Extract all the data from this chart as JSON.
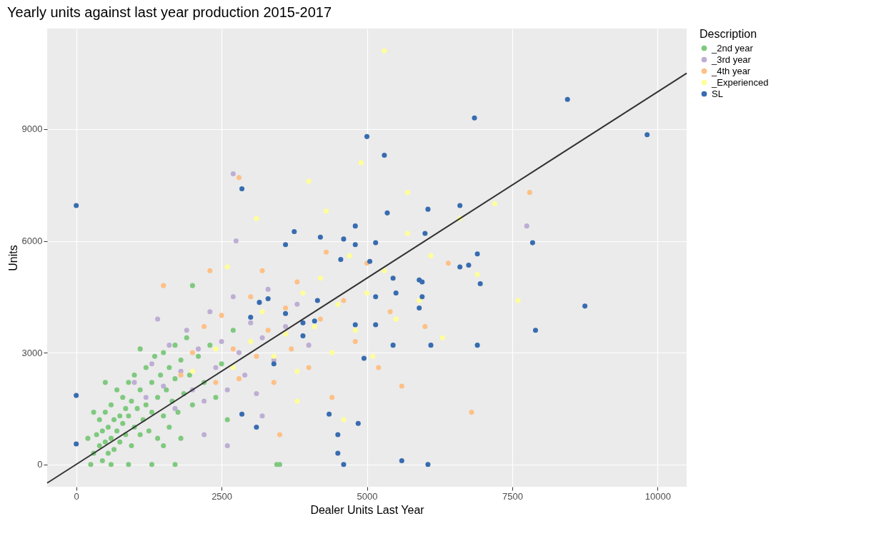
{
  "chart_data": {
    "type": "scatter",
    "title": "Yearly units against last year production 2015-2017",
    "xlabel": "Dealer Units Last Year",
    "ylabel": "Units",
    "legend_title": "Description",
    "xlim": [
      -500,
      10500
    ],
    "ylim": [
      -600,
      11700
    ],
    "xticks": [
      0,
      2500,
      5000,
      7500,
      10000
    ],
    "yticks": [
      0,
      3000,
      6000,
      9000
    ],
    "grid": true,
    "legend": "right",
    "marker": "circle",
    "series": [
      {
        "name": "_2nd year",
        "color": "#7fc97f",
        "x": [
          300,
          350,
          400,
          400,
          450,
          450,
          500,
          500,
          550,
          550,
          600,
          600,
          650,
          650,
          700,
          700,
          750,
          750,
          800,
          800,
          850,
          850,
          900,
          900,
          950,
          950,
          1000,
          1000,
          1050,
          1100,
          1100,
          1150,
          1200,
          1200,
          1250,
          1300,
          1300,
          1350,
          1400,
          1400,
          1450,
          1500,
          1500,
          1550,
          1600,
          1600,
          1650,
          1700,
          1700,
          1750,
          1800,
          1850,
          1900,
          1950,
          2000,
          2000,
          2100,
          2200,
          2300,
          2400,
          2500,
          250,
          600,
          900,
          1300,
          1700,
          3450,
          3500,
          500,
          300,
          200,
          1100,
          2700,
          2600,
          1500,
          1800
        ],
        "values": [
          300,
          800,
          500,
          1200,
          100,
          900,
          600,
          1400,
          300,
          1000,
          700,
          1600,
          1200,
          400,
          900,
          2000,
          1300,
          600,
          1100,
          1800,
          800,
          1500,
          1300,
          2200,
          500,
          1700,
          1000,
          2400,
          1500,
          800,
          2000,
          1200,
          2600,
          1600,
          900,
          2200,
          1400,
          2900,
          1800,
          700,
          2400,
          1300,
          3000,
          2000,
          2600,
          1000,
          1700,
          3200,
          2300,
          1400,
          2800,
          1900,
          3400,
          2400,
          1600,
          4800,
          2900,
          2200,
          3200,
          1800,
          2700,
          0,
          0,
          0,
          0,
          0,
          0,
          0,
          2200,
          1400,
          700,
          3100,
          3600,
          1200,
          500,
          700
        ]
      },
      {
        "name": "_3rd year",
        "color": "#beaed4",
        "x": [
          1000,
          1200,
          1300,
          1500,
          1600,
          1700,
          1800,
          1900,
          2000,
          2100,
          2200,
          2300,
          2400,
          2500,
          2600,
          2700,
          2800,
          2900,
          3000,
          3100,
          3200,
          3300,
          3400,
          3600,
          3800,
          4000,
          2750,
          2700,
          7750,
          1400,
          2200,
          2600,
          3200
        ],
        "values": [
          2200,
          1800,
          2700,
          2100,
          3200,
          1500,
          2500,
          3600,
          2000,
          3100,
          1700,
          4100,
          2600,
          3300,
          2000,
          4500,
          3000,
          2400,
          3800,
          1900,
          3400,
          4700,
          2800,
          3700,
          4300,
          3200,
          6000,
          7800,
          6400,
          3900,
          800,
          500,
          1300
        ]
      },
      {
        "name": "_4th year",
        "color": "#fdc086",
        "x": [
          1500,
          1800,
          2000,
          2200,
          2400,
          2500,
          2700,
          2800,
          3000,
          3100,
          3200,
          3300,
          3400,
          3600,
          3700,
          3800,
          4000,
          4200,
          4400,
          4600,
          4800,
          5000,
          5200,
          5400,
          5600,
          6000,
          6400,
          6800,
          7800,
          2800,
          4300,
          3500,
          2300
        ],
        "values": [
          4800,
          2400,
          3000,
          3700,
          2200,
          4000,
          3100,
          2300,
          4500,
          2900,
          5200,
          3600,
          2200,
          4200,
          3100,
          4900,
          2600,
          3900,
          1800,
          4400,
          3300,
          5400,
          2600,
          4100,
          2100,
          3700,
          5400,
          1400,
          7300,
          7700,
          5700,
          800,
          5200
        ]
      },
      {
        "name": "_Experienced",
        "color": "#ffff99",
        "x": [
          2000,
          2400,
          2700,
          3000,
          3200,
          3400,
          3600,
          3800,
          3900,
          4100,
          4200,
          4400,
          4500,
          4700,
          4800,
          5000,
          5100,
          5300,
          5500,
          5700,
          5900,
          6100,
          6300,
          6600,
          6900,
          7200,
          7600,
          4000,
          4900,
          5300,
          3800,
          4600,
          5700,
          3100,
          2600,
          4300
        ],
        "values": [
          2500,
          3100,
          2600,
          3300,
          4100,
          2900,
          3500,
          2500,
          4600,
          3700,
          5000,
          3000,
          4300,
          5600,
          3600,
          4600,
          2900,
          5200,
          3900,
          6200,
          4400,
          5600,
          3400,
          6600,
          5100,
          7000,
          4400,
          7600,
          8100,
          11100,
          1700,
          1200,
          7300,
          6600,
          5300,
          6800
        ]
      },
      {
        "name": "SL",
        "color": "#386cb0",
        "x": [
          8450,
          6850,
          5000,
          5300,
          2850,
          6600,
          6050,
          5350,
          4800,
          3750,
          4200,
          4600,
          3600,
          4800,
          5150,
          6000,
          7850,
          6900,
          4550,
          5050,
          6600,
          6750,
          6950,
          5450,
          5900,
          5950,
          5500,
          5150,
          5950,
          5900,
          8750,
          7900,
          4800,
          5150,
          5450,
          6100,
          6900,
          4950,
          3300,
          3150,
          4150,
          3600,
          3000,
          3900,
          4100,
          3400,
          3900,
          0,
          0,
          0,
          3100,
          2850,
          4500,
          4600,
          4850,
          4500,
          4350,
          5600,
          6050,
          9820
        ],
        "values": [
          9800,
          9300,
          8800,
          8300,
          7400,
          6950,
          6850,
          6750,
          6400,
          6250,
          6100,
          6050,
          5900,
          5900,
          5950,
          6200,
          5950,
          5650,
          5500,
          5450,
          5300,
          5350,
          4850,
          5000,
          4950,
          4900,
          4600,
          4500,
          4500,
          4200,
          4250,
          3600,
          3750,
          3750,
          3200,
          3200,
          3200,
          2850,
          4450,
          4350,
          4400,
          4050,
          3950,
          3450,
          3850,
          2700,
          3800,
          6950,
          1850,
          550,
          1000,
          1350,
          300,
          0,
          1100,
          800,
          1350,
          100,
          0,
          8850
        ]
      },
      {
        "type": "line",
        "color": "#333333",
        "marker": "none",
        "x": [
          -500,
          10500
        ],
        "values": [
          -500,
          10500
        ]
      }
    ]
  }
}
